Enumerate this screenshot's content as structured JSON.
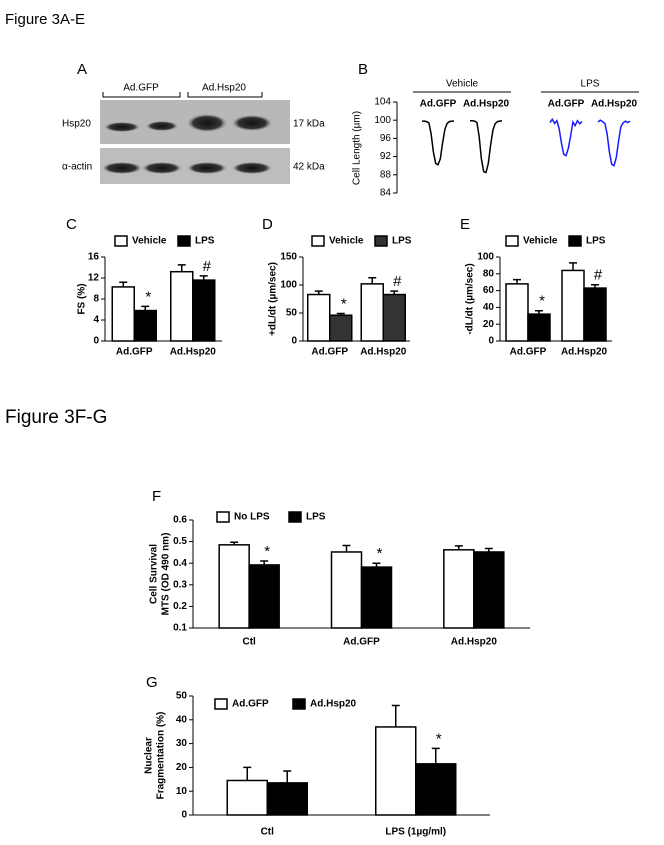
{
  "figure_titles": [
    "Figure 3A-E",
    "Figure 3F-G"
  ],
  "panel_a": {
    "label": "A",
    "lanes": [
      "Ad.GFP",
      "Ad.Hsp20"
    ],
    "rows": [
      {
        "name": "Hsp20",
        "size": "17 kDa"
      },
      {
        "name": "α-actin",
        "size": "42 kDa"
      }
    ]
  },
  "panel_b": {
    "label": "B",
    "y_label": "Cell Length (µm)",
    "ylim": [
      84,
      104
    ],
    "yticks": [
      84,
      88,
      92,
      96,
      100,
      104
    ],
    "conditions": [
      {
        "name": "Vehicle",
        "traces": [
          {
            "name": "Ad.GFP",
            "color": "#000000",
            "values": [
              99.8,
              99.8,
              99.7,
              99.4,
              97,
              93,
              90.5,
              90.2,
              91.5,
              95,
              98,
              99.3,
              99.7,
              99.8,
              99.8
            ]
          },
          {
            "name": "Ad.Hsp20",
            "color": "#000000",
            "values": [
              99.9,
              99.9,
              99.8,
              99.5,
              96.5,
              91.5,
              88.7,
              88.5,
              90.5,
              94.5,
              97.8,
              99.2,
              99.7,
              99.8,
              99.9
            ]
          }
        ]
      },
      {
        "name": "LPS",
        "traces": [
          {
            "name": "Ad.GFP",
            "color": "#1a1aff",
            "values": [
              99.5,
              100.2,
              99.3,
              99.9,
              98.2,
              95,
              92.5,
              92.2,
              93.8,
              96.5,
              99.6,
              98.8,
              99.9,
              99.2,
              99.7
            ]
          },
          {
            "name": "Ad.Hsp20",
            "color": "#1a1aff",
            "values": [
              99.6,
              100,
              99.7,
              99.3,
              97,
              93,
              90.3,
              90,
              91.8,
              95.5,
              98.6,
              99.4,
              99.8,
              99.5,
              99.8
            ]
          }
        ]
      }
    ]
  },
  "chart_data": [
    {
      "type": "bar",
      "label": "C",
      "y_label": "FS (%)",
      "categories": [
        "Ad.GFP",
        "Ad.Hsp20"
      ],
      "ylim": [
        0,
        16
      ],
      "yticks": [
        0,
        4,
        8,
        12,
        16
      ],
      "series": [
        {
          "name": "Vehicle",
          "color": "#ffffff",
          "values": [
            10.3,
            13.2
          ],
          "errors": [
            0.9,
            1.3
          ],
          "annotations": [
            null,
            null
          ]
        },
        {
          "name": "LPS",
          "color": "#000000",
          "values": [
            5.8,
            11.6
          ],
          "errors": [
            0.8,
            0.8
          ],
          "annotations": [
            "*",
            "#"
          ]
        }
      ]
    },
    {
      "type": "bar",
      "label": "D",
      "y_label": "+dL/dt (µm/sec)",
      "categories": [
        "Ad.GFP",
        "Ad.Hsp20"
      ],
      "ylim": [
        0,
        150
      ],
      "yticks": [
        0,
        50,
        100,
        150
      ],
      "series": [
        {
          "name": "Vehicle",
          "color": "#ffffff",
          "values": [
            83,
            102
          ],
          "errors": [
            6,
            11
          ],
          "annotations": [
            null,
            null
          ]
        },
        {
          "name": "LPS",
          "color": "#333333",
          "values": [
            46,
            83
          ],
          "errors": [
            3,
            6
          ],
          "annotations": [
            "*",
            "#"
          ]
        }
      ]
    },
    {
      "type": "bar",
      "label": "E",
      "y_label": "-dL/dt (µm/sec)",
      "categories": [
        "Ad.GFP",
        "Ad.Hsp20"
      ],
      "ylim": [
        0,
        100
      ],
      "yticks": [
        0,
        20,
        40,
        60,
        80,
        100
      ],
      "series": [
        {
          "name": "Vehicle",
          "color": "#ffffff",
          "values": [
            68,
            84
          ],
          "errors": [
            5,
            9
          ],
          "annotations": [
            null,
            null
          ]
        },
        {
          "name": "LPS",
          "color": "#000000",
          "values": [
            32,
            63
          ],
          "errors": [
            4,
            4
          ],
          "annotations": [
            "*",
            "#"
          ]
        }
      ]
    },
    {
      "type": "bar",
      "label": "F",
      "y_label": [
        "Cell Survival",
        "MTS (OD 490 nm)"
      ],
      "categories": [
        "Ctl",
        "Ad.GFP",
        "Ad.Hsp20"
      ],
      "ylim": [
        0.1,
        0.6
      ],
      "yticks": [
        0.1,
        0.2,
        0.3,
        0.4,
        0.5,
        0.6
      ],
      "series": [
        {
          "name": "No LPS",
          "color": "#ffffff",
          "values": [
            0.485,
            0.452,
            0.462
          ],
          "errors": [
            0.012,
            0.03,
            0.018
          ],
          "annotations": [
            null,
            null,
            null
          ]
        },
        {
          "name": "LPS",
          "color": "#000000",
          "values": [
            0.392,
            0.382,
            0.452
          ],
          "errors": [
            0.018,
            0.018,
            0.016
          ],
          "annotations": [
            "*",
            "*",
            null
          ]
        }
      ]
    },
    {
      "type": "bar",
      "label": "G",
      "y_label": [
        "Nuclear",
        "Fragmentation (%)"
      ],
      "categories": [
        "Ctl",
        "LPS (1µg/ml)"
      ],
      "ylim": [
        0,
        50
      ],
      "yticks": [
        0,
        10,
        20,
        30,
        40,
        50
      ],
      "series": [
        {
          "name": "Ad.GFP",
          "color": "#ffffff",
          "values": [
            14.5,
            37
          ],
          "errors": [
            5.5,
            9
          ],
          "annotations": [
            null,
            null
          ]
        },
        {
          "name": "Ad.Hsp20",
          "color": "#000000",
          "values": [
            13.5,
            21.5
          ],
          "errors": [
            5,
            6.5
          ],
          "annotations": [
            null,
            "*"
          ]
        }
      ]
    }
  ]
}
